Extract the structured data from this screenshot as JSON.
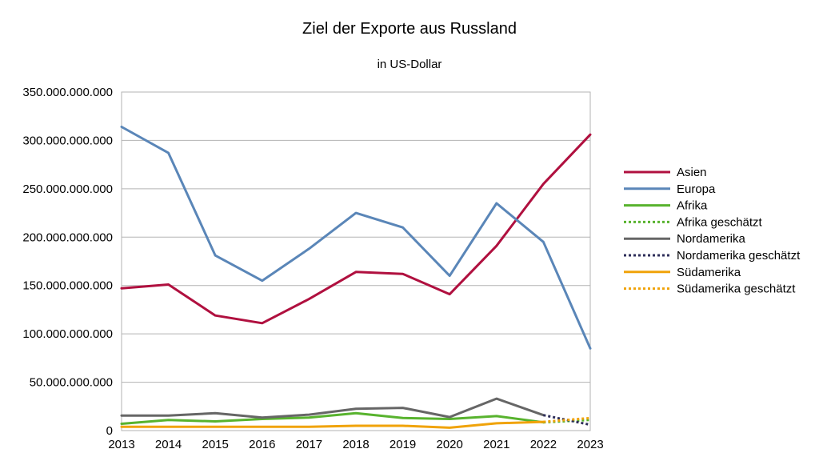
{
  "chart_data": {
    "type": "line",
    "title": "Ziel der Exporte aus Russland",
    "subtitle": "in US-Dollar",
    "x": [
      "2013",
      "2014",
      "2015",
      "2016",
      "2017",
      "2018",
      "2019",
      "2020",
      "2021",
      "2022",
      "2023"
    ],
    "ylim": [
      0,
      350000000000
    ],
    "yticks": [
      0,
      50000000000,
      100000000000,
      150000000000,
      200000000000,
      250000000000,
      300000000000,
      350000000000
    ],
    "ytick_labels": [
      "0",
      "50.000.000.000",
      "100.000.000.000",
      "150.000.000.000",
      "200.000.000.000",
      "250.000.000.000",
      "300.000.000.000",
      "350.000.000.000"
    ],
    "grid": "horizontal",
    "legend_position": "right",
    "series": [
      {
        "name": "Asien",
        "color": "#b0103f",
        "style": "solid",
        "values": [
          147000000000,
          151000000000,
          119000000000,
          111000000000,
          136000000000,
          164000000000,
          162000000000,
          141000000000,
          191000000000,
          255000000000,
          306000000000
        ]
      },
      {
        "name": "Europa",
        "color": "#5a86b8",
        "style": "solid",
        "values": [
          314000000000,
          287000000000,
          181000000000,
          155000000000,
          188000000000,
          225000000000,
          210000000000,
          160000000000,
          235000000000,
          195000000000,
          85000000000
        ]
      },
      {
        "name": "Afrika",
        "color": "#58b32e",
        "style": "solid",
        "values": [
          7000000000,
          11000000000,
          9500000000,
          12000000000,
          13500000000,
          18000000000,
          13000000000,
          12000000000,
          15000000000,
          8500000000,
          null
        ]
      },
      {
        "name": "Afrika geschätzt",
        "color": "#58b32e",
        "style": "dotted",
        "values": [
          null,
          null,
          null,
          null,
          null,
          null,
          null,
          null,
          null,
          8500000000,
          11000000000
        ]
      },
      {
        "name": "Nordamerika",
        "color": "#666666",
        "style": "solid",
        "values": [
          15500000000,
          15500000000,
          18000000000,
          13500000000,
          16500000000,
          22500000000,
          23500000000,
          14000000000,
          33000000000,
          16000000000,
          null
        ]
      },
      {
        "name": "Nordamerika geschätzt",
        "color": "#2e2e5a",
        "style": "dotted",
        "values": [
          null,
          null,
          null,
          null,
          null,
          null,
          null,
          null,
          null,
          16000000000,
          6000000000
        ]
      },
      {
        "name": "Südamerika",
        "color": "#f0a30a",
        "style": "solid",
        "values": [
          4000000000,
          4000000000,
          4000000000,
          4000000000,
          4000000000,
          5000000000,
          5000000000,
          3000000000,
          7500000000,
          9000000000,
          null
        ]
      },
      {
        "name": "Südamerika geschätzt",
        "color": "#f0a30a",
        "style": "dotted",
        "values": [
          null,
          null,
          null,
          null,
          null,
          null,
          null,
          null,
          null,
          9000000000,
          13000000000
        ]
      }
    ]
  }
}
